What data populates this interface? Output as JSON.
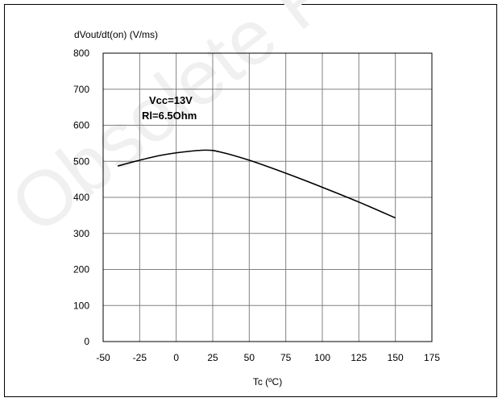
{
  "watermark": "Obsolete Product(s)",
  "colors": {
    "frame": "#000000",
    "grid": "#808080",
    "line": "#000000",
    "watermark": "#f0f0f0"
  },
  "chart_data": {
    "type": "line",
    "title": "",
    "xlabel": "Tc (ºC)",
    "ylabel": "dVout/dt(on) (V/ms)",
    "xlim": [
      -50,
      175
    ],
    "ylim": [
      0,
      800
    ],
    "xticks": [
      -50,
      -25,
      0,
      25,
      50,
      75,
      100,
      125,
      150,
      175
    ],
    "yticks": [
      0,
      100,
      200,
      300,
      400,
      500,
      600,
      700,
      800
    ],
    "grid": true,
    "annotations": [
      "Vcc=13V",
      "Rl=6.5Ohm"
    ],
    "series": [
      {
        "x": [
          -40,
          -25,
          -10,
          5,
          20,
          30,
          50,
          75,
          100,
          125,
          150
        ],
        "y": [
          487,
          503,
          517,
          526,
          531,
          526,
          503,
          467,
          428,
          387,
          343
        ]
      }
    ]
  }
}
